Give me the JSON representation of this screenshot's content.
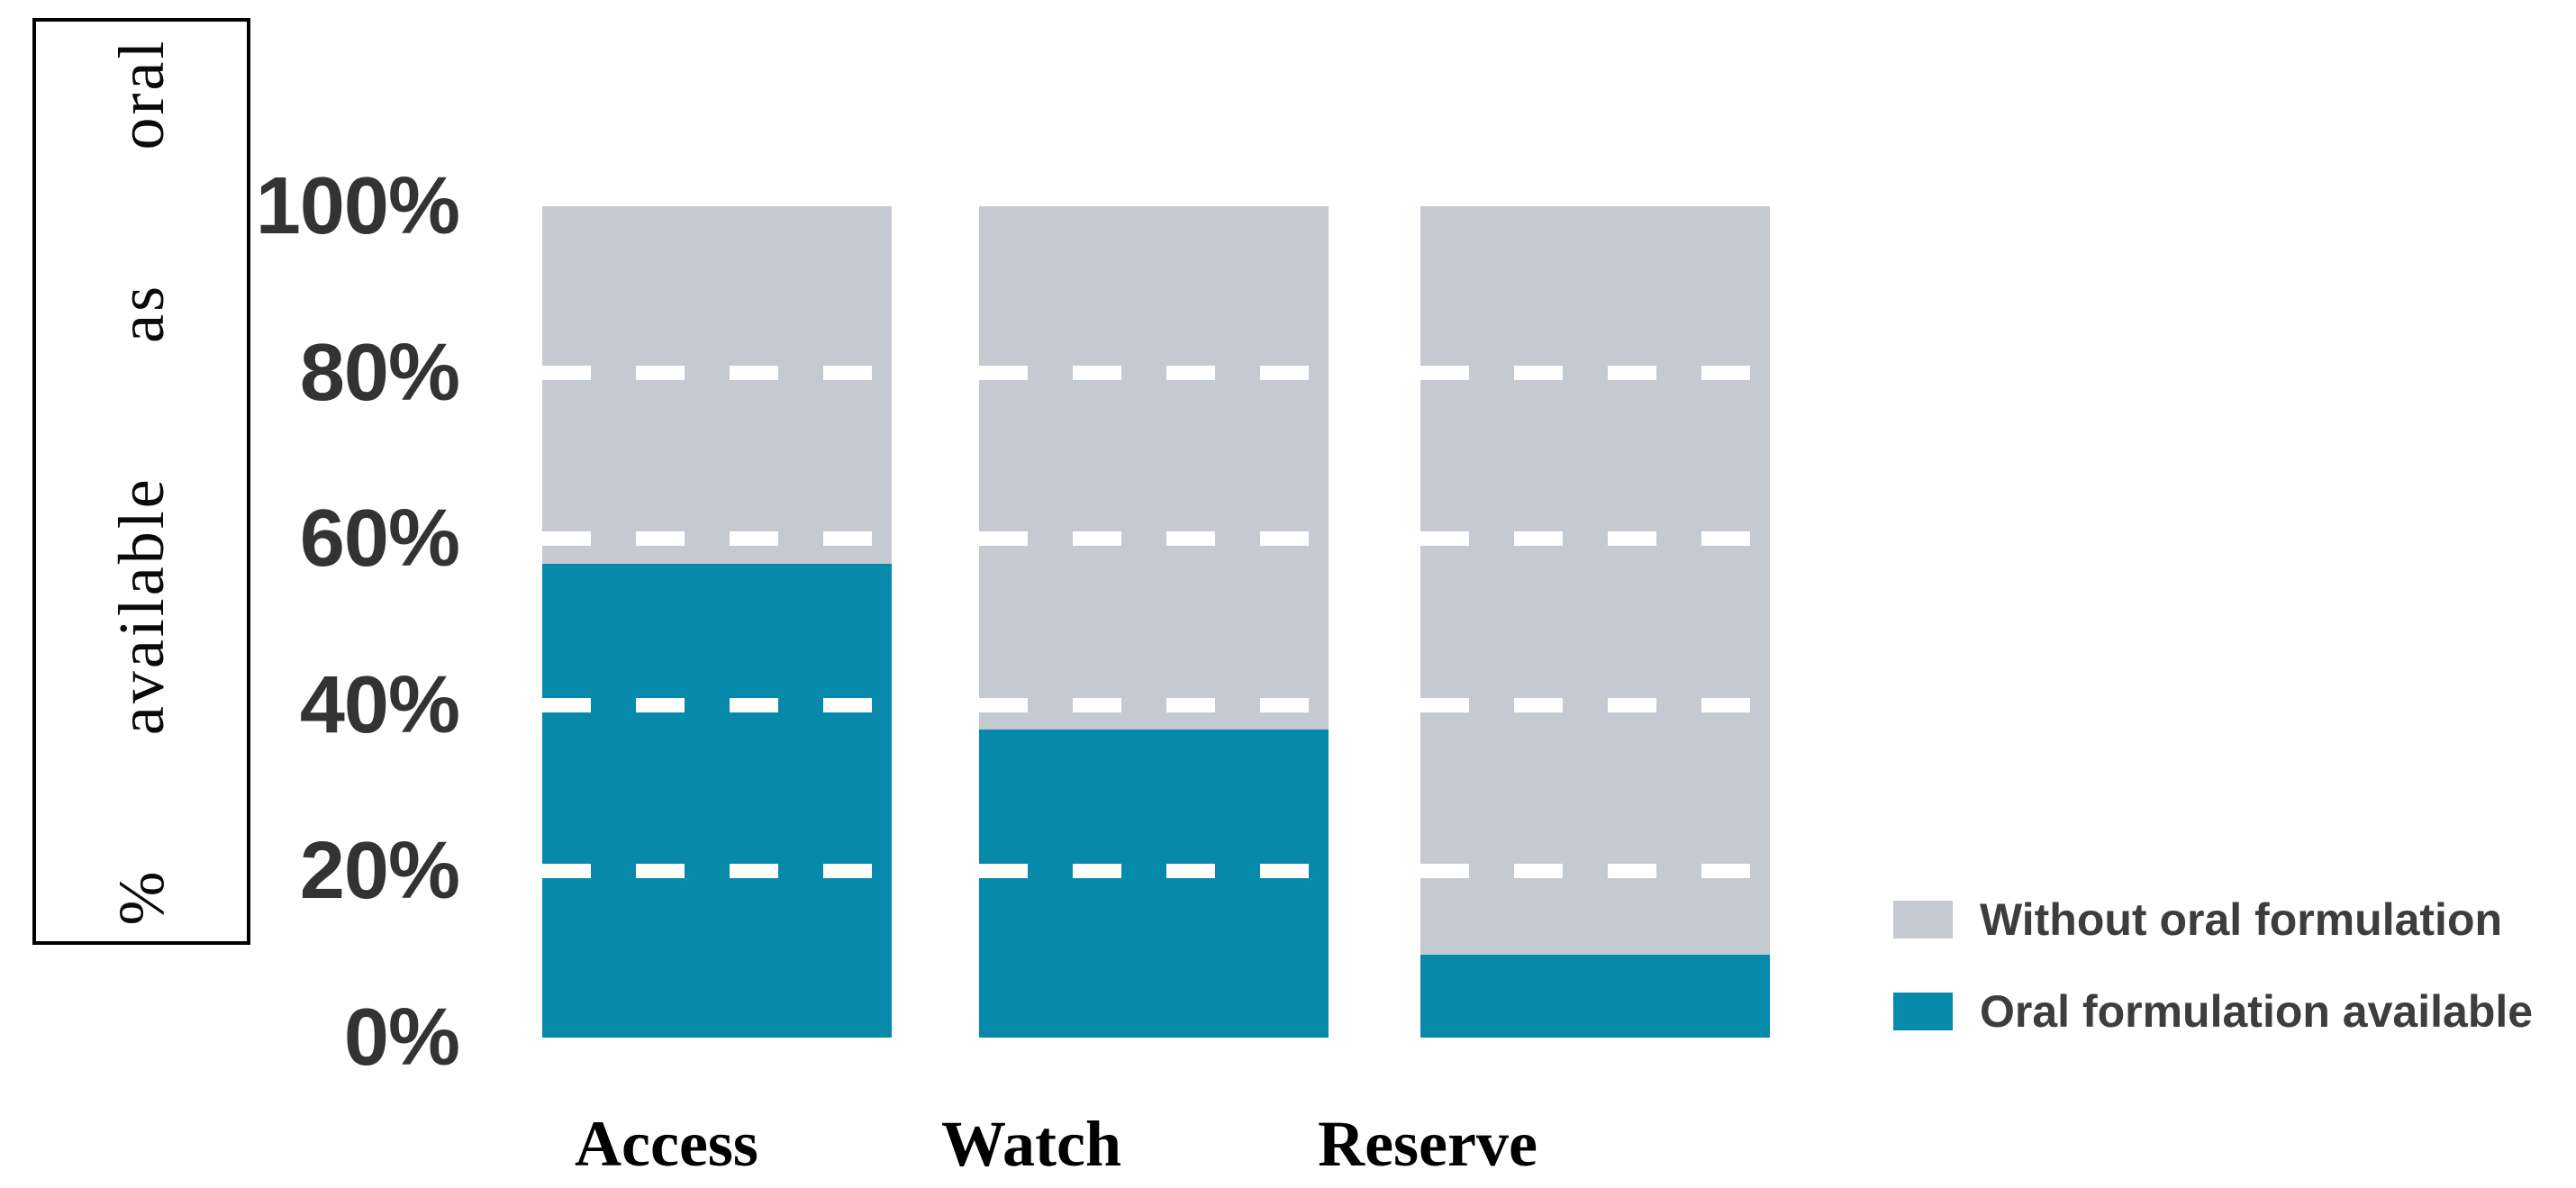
{
  "chart_data": {
    "type": "bar",
    "stacked": true,
    "categories": [
      "Access",
      "Watch",
      "Reserve"
    ],
    "series": [
      {
        "name": "Oral formulation available",
        "color": "#0789ac",
        "values": [
          57,
          37,
          10
        ]
      },
      {
        "name": "Without oral formulation",
        "color": "#c5cad2",
        "values": [
          43,
          63,
          90
        ]
      }
    ],
    "title": "",
    "xlabel": "",
    "ylabel": "% available as oral",
    "yticks": [
      "0%",
      "20%",
      "40%",
      "60%",
      "80%",
      "100%"
    ],
    "ylim": [
      0,
      100
    ],
    "gridlines": [
      20,
      40,
      60,
      80
    ],
    "gridline_style": "white dashed, drawn across bars only",
    "legend": [
      {
        "label": "Without oral formulation",
        "color": "#c5cad2"
      },
      {
        "label": "Oral formulation available",
        "color": "#0789ac"
      }
    ],
    "legend_position": "right",
    "background_color": "#ffffff",
    "text_colors": {
      "ticks": "#333333",
      "legend": "#3d3d3d",
      "categories": "#000000",
      "ylabel": "#0a0a0a"
    }
  }
}
